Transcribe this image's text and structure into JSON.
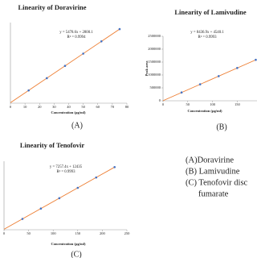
{
  "chart_data": [
    {
      "type": "scatter",
      "title": "Linearity of Doravirine",
      "equation": "y = 5478.6x + 2800.1",
      "r_squared": "R² = 0.9994",
      "xlabel": "Concentration (µg/ml)",
      "panel_label": "(A)",
      "x": [
        12.5,
        25,
        37.5,
        50,
        62.5,
        75
      ],
      "series": [
        {
          "name": "Doravirine",
          "color": "#4472c4",
          "values": [
            71283,
            139765,
            208248,
            276730,
            345213,
            413695
          ]
        }
      ],
      "trend_color": "#ed7d31",
      "xlim": [
        0,
        80
      ],
      "xticks": [
        0,
        10,
        20,
        30,
        40,
        50,
        60,
        70,
        80
      ],
      "ylim": [
        0,
        450000
      ]
    },
    {
      "type": "scatter",
      "title": "Linearity of Lamivudine",
      "equation": "y = 8436.9x + 4540.1",
      "r_squared": "R² = 0.9993",
      "xlabel": "Concentration (µg/ml)",
      "ylabel": "Peak area",
      "panel_label": "(B)",
      "x": [
        37.5,
        75,
        112.5,
        150,
        187.5
      ],
      "series": [
        {
          "name": "Lamivudine",
          "color": "#4472c4",
          "values": [
            320924,
            637308,
            953691,
            1270075,
            1586459
          ]
        }
      ],
      "trend_color": "#ed7d31",
      "xlim": [
        0,
        190
      ],
      "xticks": [
        0,
        50,
        100,
        150
      ],
      "ylim": [
        0,
        2500000
      ],
      "yticks": [
        0,
        500000,
        1000000,
        1500000,
        2000000,
        2500000
      ]
    },
    {
      "type": "scatter",
      "title": "Linearity of Tenofovir",
      "equation": "y = 7257.4x + 12435",
      "r_squared": "R² = 0.9993",
      "xlabel": "Concentration (µg/ml)",
      "panel_label": "(C)",
      "x": [
        37.5,
        75,
        112.5,
        150,
        187.5,
        225
      ],
      "series": [
        {
          "name": "Tenofovir",
          "color": "#4472c4",
          "values": [
            284588,
            556740,
            828893,
            1101045,
            1373198,
            1645350
          ]
        }
      ],
      "trend_color": "#ed7d31",
      "xlim": [
        0,
        250
      ],
      "xticks": [
        0,
        50,
        100,
        150,
        200,
        250
      ],
      "ylim": [
        0,
        1800000
      ]
    }
  ],
  "legend": [
    "(A)Doravirine",
    "(B) Lamivudine",
    "(C)  Tenofovir disc",
    "fumarate"
  ]
}
